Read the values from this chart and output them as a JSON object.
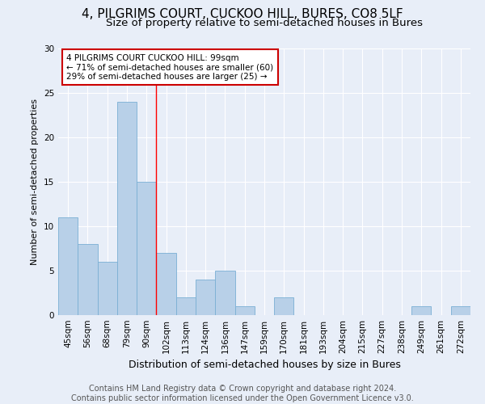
{
  "title": "4, PILGRIMS COURT, CUCKOO HILL, BURES, CO8 5LF",
  "subtitle": "Size of property relative to semi-detached houses in Bures",
  "xlabel": "Distribution of semi-detached houses by size in Bures",
  "ylabel": "Number of semi-detached properties",
  "categories": [
    "45sqm",
    "56sqm",
    "68sqm",
    "79sqm",
    "90sqm",
    "102sqm",
    "113sqm",
    "124sqm",
    "136sqm",
    "147sqm",
    "159sqm",
    "170sqm",
    "181sqm",
    "193sqm",
    "204sqm",
    "215sqm",
    "227sqm",
    "238sqm",
    "249sqm",
    "261sqm",
    "272sqm"
  ],
  "values": [
    11,
    8,
    6,
    24,
    15,
    7,
    2,
    4,
    5,
    1,
    0,
    2,
    0,
    0,
    0,
    0,
    0,
    0,
    1,
    0,
    1
  ],
  "bar_color": "#b8d0e8",
  "bar_edge_color": "#7aafd4",
  "annotation_text": "4 PILGRIMS COURT CUCKOO HILL: 99sqm\n← 71% of semi-detached houses are smaller (60)\n29% of semi-detached houses are larger (25) →",
  "annotation_box_color": "#ffffff",
  "annotation_box_edge": "#cc0000",
  "vline_x": 4.5,
  "ylim": [
    0,
    30
  ],
  "yticks": [
    0,
    5,
    10,
    15,
    20,
    25,
    30
  ],
  "footer_line1": "Contains HM Land Registry data © Crown copyright and database right 2024.",
  "footer_line2": "Contains public sector information licensed under the Open Government Licence v3.0.",
  "background_color": "#e8eef8",
  "plot_background": "#e8eef8",
  "grid_color": "#ffffff",
  "title_fontsize": 11,
  "subtitle_fontsize": 9.5,
  "xlabel_fontsize": 9,
  "ylabel_fontsize": 8,
  "tick_fontsize": 7.5,
  "annotation_fontsize": 7.5,
  "footer_fontsize": 7
}
